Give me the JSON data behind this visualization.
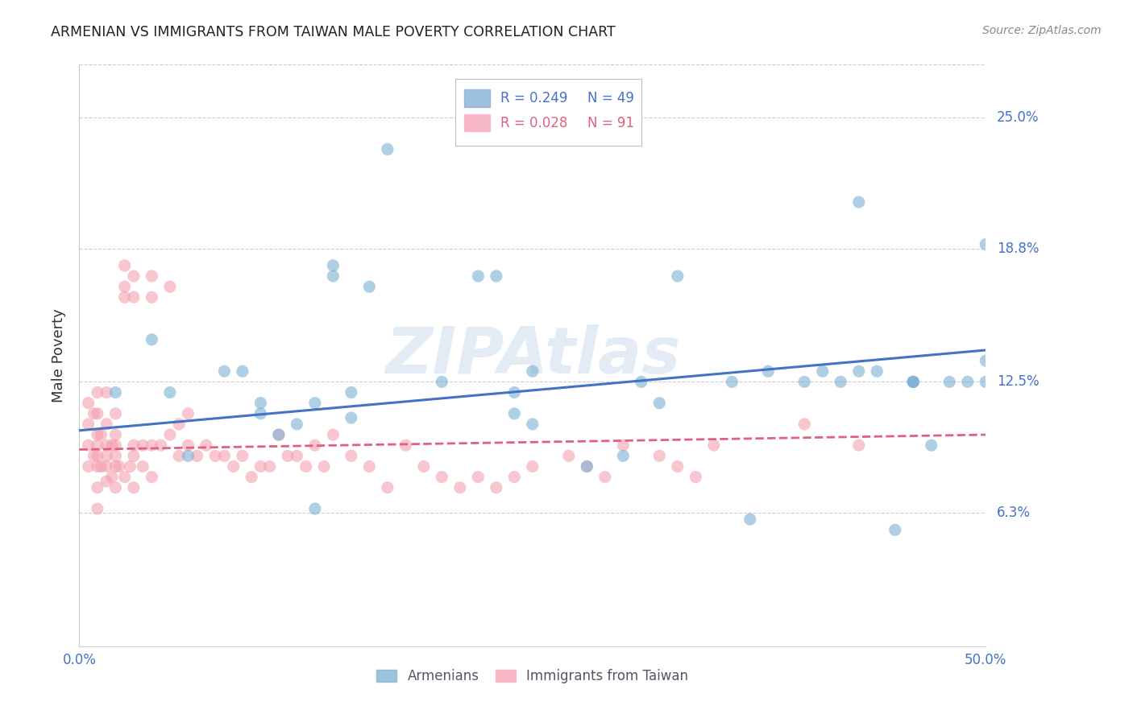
{
  "title": "ARMENIAN VS IMMIGRANTS FROM TAIWAN MALE POVERTY CORRELATION CHART",
  "source": "Source: ZipAtlas.com",
  "ylabel": "Male Poverty",
  "ytick_labels": [
    "25.0%",
    "18.8%",
    "12.5%",
    "6.3%"
  ],
  "ytick_values": [
    0.25,
    0.188,
    0.125,
    0.063
  ],
  "xlim": [
    0.0,
    0.5
  ],
  "ylim": [
    0.0,
    0.275
  ],
  "legend_blue_r": "R = 0.249",
  "legend_blue_n": "N = 49",
  "legend_pink_r": "R = 0.028",
  "legend_pink_n": "N = 91",
  "legend_label_blue": "Armenians",
  "legend_label_pink": "Immigrants from Taiwan",
  "blue_color": "#7BAFD4",
  "pink_color": "#F4A0B0",
  "blue_line_color": "#4472C4",
  "pink_line_color": "#E06080",
  "background_color": "#FFFFFF",
  "grid_color": "#CCCCDD",
  "title_color": "#222222",
  "right_label_color": "#4472C4",
  "watermark_text": "ZIPAtlas",
  "watermark_color": "#C8D8EC",
  "blue_x": [
    0.02,
    0.04,
    0.05,
    0.06,
    0.08,
    0.09,
    0.1,
    0.1,
    0.11,
    0.12,
    0.13,
    0.13,
    0.14,
    0.14,
    0.15,
    0.15,
    0.16,
    0.17,
    0.2,
    0.22,
    0.23,
    0.24,
    0.24,
    0.25,
    0.25,
    0.28,
    0.3,
    0.31,
    0.32,
    0.33,
    0.36,
    0.37,
    0.38,
    0.4,
    0.41,
    0.42,
    0.43,
    0.43,
    0.44,
    0.45,
    0.46,
    0.46,
    0.46,
    0.47,
    0.48,
    0.49,
    0.5,
    0.5,
    0.5
  ],
  "blue_y": [
    0.12,
    0.145,
    0.12,
    0.09,
    0.13,
    0.13,
    0.115,
    0.11,
    0.1,
    0.105,
    0.115,
    0.065,
    0.18,
    0.175,
    0.108,
    0.12,
    0.17,
    0.235,
    0.125,
    0.175,
    0.175,
    0.11,
    0.12,
    0.105,
    0.13,
    0.085,
    0.09,
    0.125,
    0.115,
    0.175,
    0.125,
    0.06,
    0.13,
    0.125,
    0.13,
    0.125,
    0.13,
    0.21,
    0.13,
    0.055,
    0.125,
    0.125,
    0.125,
    0.095,
    0.125,
    0.125,
    0.135,
    0.19,
    0.125
  ],
  "pink_x": [
    0.005,
    0.005,
    0.005,
    0.005,
    0.008,
    0.008,
    0.01,
    0.01,
    0.01,
    0.01,
    0.01,
    0.01,
    0.01,
    0.01,
    0.012,
    0.012,
    0.015,
    0.015,
    0.015,
    0.015,
    0.015,
    0.015,
    0.018,
    0.018,
    0.02,
    0.02,
    0.02,
    0.02,
    0.02,
    0.02,
    0.022,
    0.025,
    0.025,
    0.025,
    0.025,
    0.028,
    0.03,
    0.03,
    0.03,
    0.03,
    0.03,
    0.035,
    0.035,
    0.04,
    0.04,
    0.04,
    0.04,
    0.045,
    0.05,
    0.05,
    0.055,
    0.055,
    0.06,
    0.06,
    0.065,
    0.07,
    0.075,
    0.08,
    0.085,
    0.09,
    0.095,
    0.1,
    0.105,
    0.11,
    0.115,
    0.12,
    0.125,
    0.13,
    0.135,
    0.14,
    0.15,
    0.16,
    0.17,
    0.18,
    0.19,
    0.2,
    0.21,
    0.22,
    0.23,
    0.24,
    0.25,
    0.27,
    0.28,
    0.29,
    0.3,
    0.32,
    0.33,
    0.34,
    0.35,
    0.4,
    0.43
  ],
  "pink_y": [
    0.115,
    0.105,
    0.095,
    0.085,
    0.11,
    0.09,
    0.12,
    0.11,
    0.1,
    0.095,
    0.09,
    0.085,
    0.075,
    0.065,
    0.1,
    0.085,
    0.12,
    0.105,
    0.095,
    0.09,
    0.085,
    0.078,
    0.095,
    0.08,
    0.11,
    0.1,
    0.095,
    0.09,
    0.085,
    0.075,
    0.085,
    0.18,
    0.17,
    0.165,
    0.08,
    0.085,
    0.175,
    0.165,
    0.095,
    0.09,
    0.075,
    0.095,
    0.085,
    0.175,
    0.165,
    0.095,
    0.08,
    0.095,
    0.17,
    0.1,
    0.105,
    0.09,
    0.11,
    0.095,
    0.09,
    0.095,
    0.09,
    0.09,
    0.085,
    0.09,
    0.08,
    0.085,
    0.085,
    0.1,
    0.09,
    0.09,
    0.085,
    0.095,
    0.085,
    0.1,
    0.09,
    0.085,
    0.075,
    0.095,
    0.085,
    0.08,
    0.075,
    0.08,
    0.075,
    0.08,
    0.085,
    0.09,
    0.085,
    0.08,
    0.095,
    0.09,
    0.085,
    0.08,
    0.095,
    0.105,
    0.095
  ],
  "blue_line_x": [
    0.0,
    0.5
  ],
  "blue_line_y": [
    0.102,
    0.14
  ],
  "pink_line_x": [
    0.0,
    0.5
  ],
  "pink_line_y": [
    0.093,
    0.1
  ]
}
